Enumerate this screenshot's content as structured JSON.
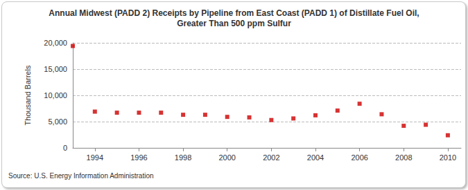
{
  "chart_data": {
    "type": "scatter",
    "title": "Annual Midwest (PADD 2) Receipts by Pipeline from East Coast (PADD 1) of Distillate Fuel Oil, Greater Than 500 ppm Sulfur",
    "y_label": "Thousand Barrels",
    "annotations": [
      "Source: U.S. Energy Information Administration"
    ],
    "x": [
      1993,
      1994,
      1995,
      1996,
      1997,
      1998,
      1999,
      2000,
      2001,
      2002,
      2003,
      2004,
      2005,
      2006,
      2007,
      2008,
      2009,
      2010
    ],
    "values": [
      19400,
      6900,
      6700,
      6700,
      6700,
      6300,
      6300,
      5900,
      5800,
      5300,
      5600,
      6200,
      7100,
      8400,
      6400,
      4200,
      4400,
      2400
    ],
    "color": "#cc0000",
    "marker": "square",
    "xlim": [
      1993,
      2010.6
    ],
    "xticks": [
      1994,
      1996,
      1998,
      2000,
      2002,
      2004,
      2006,
      2008,
      2010
    ],
    "ylim": [
      0,
      20000
    ],
    "yticks": [
      0,
      {
        "value": 5000,
        "label": "5,000"
      },
      {
        "value": 10000,
        "label": "10,000"
      },
      {
        "value": 15000,
        "label": "15,000"
      },
      {
        "value": 20000,
        "label": "20,000"
      }
    ],
    "grid": true
  }
}
